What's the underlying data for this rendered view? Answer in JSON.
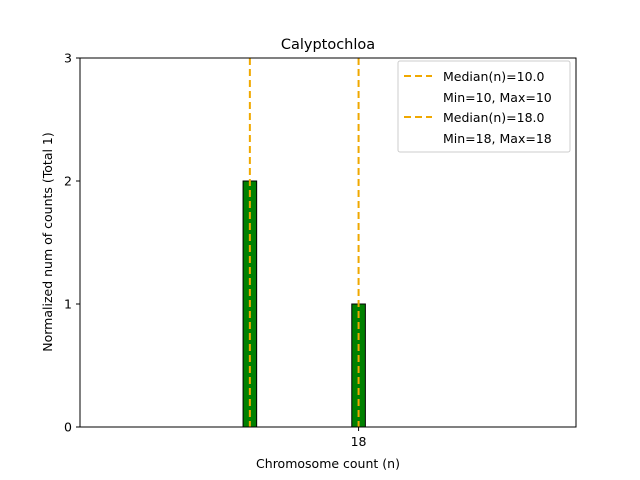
{
  "chart_data": {
    "type": "bar",
    "title": "Calyptochloa",
    "xlabel": "Chromosome count (n)",
    "ylabel": "Normalized num of counts     (Total 1)",
    "xlim": [
      -2.5,
      34
    ],
    "ylim": [
      0,
      3
    ],
    "y_ticks": [
      "0",
      "1",
      "2",
      "3"
    ],
    "x_ticks": [
      {
        "value": 18,
        "label": "18"
      }
    ],
    "bar_width": 1,
    "bar_color": "#008000",
    "bars": [
      {
        "x": 10,
        "value": 2
      },
      {
        "x": 18,
        "value": 1
      }
    ],
    "reference_lines": [
      {
        "x": 10,
        "color": "#f0a800",
        "style": "dashed"
      },
      {
        "x": 18,
        "color": "#f0a800",
        "style": "dashed"
      }
    ],
    "legend": {
      "position": "top-right",
      "entries": [
        {
          "label": "Median(n)=10.0",
          "detail": "Min=10, Max=10",
          "color": "#f0a800"
        },
        {
          "label": "Median(n)=18.0",
          "detail": "Min=18, Max=18",
          "color": "#f0a800"
        }
      ]
    },
    "grid": false
  }
}
